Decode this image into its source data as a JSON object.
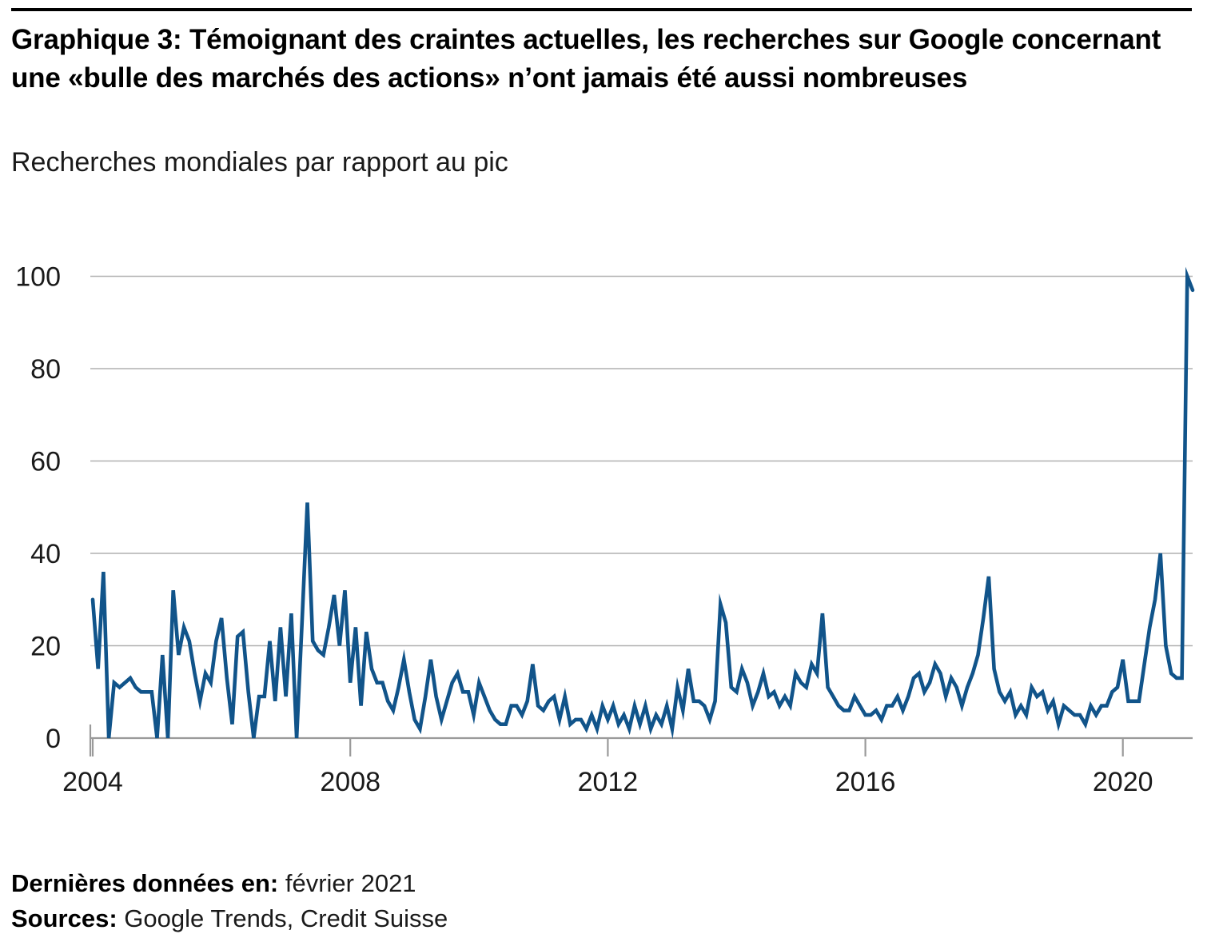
{
  "header": {
    "title": "Graphique 3: Témoignant des craintes actuelles, les recherches sur Google concernant une «bulle des marchés des actions» n’ont jamais été aussi nombreuses",
    "subtitle": "Recherches mondiales par rapport au pic"
  },
  "footer": {
    "last_data_label": "Dernières données en:",
    "last_data_value": "février 2021",
    "sources_label": "Sources:",
    "sources_value": "Google Trends, Credit Suisse"
  },
  "chart_data": {
    "type": "line",
    "title": "Graphique 3: Témoignant des craintes actuelles, les recherches sur Google concernant une «bulle des marchés des actions» n’ont jamais été aussi nombreuses",
    "subtitle": "Recherches mondiales par rapport au pic",
    "frequency": "monthly",
    "x_start": "2004-01",
    "x_end": "2021-02",
    "xticks": [
      "2004",
      "2008",
      "2012",
      "2016",
      "2020"
    ],
    "yticks": [
      0,
      20,
      40,
      60,
      80,
      100
    ],
    "ylim": [
      0,
      100
    ],
    "grid": "horizontal",
    "legend": "none",
    "colors": {
      "line": "#11548A",
      "gridline": "#b0b0b0",
      "axis": "#9a9a9a",
      "tick_text": "#1a1a1a"
    },
    "series": [
      {
        "name": "Recherches mondiales par rapport au pic",
        "values": [
          30,
          15,
          36,
          0,
          12,
          11,
          12,
          13,
          11,
          10,
          10,
          10,
          0,
          18,
          0,
          32,
          18,
          24,
          21,
          14,
          8,
          14,
          12,
          21,
          26,
          13,
          3,
          22,
          23,
          10,
          0,
          9,
          9,
          21,
          8,
          24,
          9,
          27,
          0,
          25,
          51,
          21,
          19,
          18,
          24,
          31,
          20,
          32,
          12,
          24,
          7,
          23,
          15,
          12,
          12,
          8,
          6,
          11,
          17,
          10,
          4,
          2,
          9,
          17,
          9,
          4,
          8,
          12,
          14,
          10,
          10,
          5,
          12,
          9,
          6,
          4,
          3,
          3,
          7,
          7,
          5,
          8,
          16,
          7,
          6,
          8,
          9,
          4,
          9,
          3,
          4,
          4,
          2,
          5,
          2,
          7,
          4,
          7,
          3,
          5,
          2,
          7,
          3,
          7,
          2,
          5,
          3,
          7,
          2,
          11,
          6,
          15,
          8,
          8,
          7,
          4,
          8,
          29,
          25,
          11,
          10,
          15,
          12,
          7,
          10,
          14,
          9,
          10,
          7,
          9,
          7,
          14,
          12,
          11,
          16,
          14,
          27,
          11,
          9,
          7,
          6,
          6,
          9,
          7,
          5,
          5,
          6,
          4,
          7,
          7,
          9,
          6,
          9,
          13,
          14,
          10,
          12,
          16,
          14,
          9,
          13,
          11,
          7,
          11,
          14,
          18,
          26,
          35,
          15,
          10,
          8,
          10,
          5,
          7,
          5,
          11,
          9,
          10,
          6,
          8,
          3,
          7,
          6,
          5,
          5,
          3,
          7,
          5,
          7,
          7,
          10,
          11,
          17,
          8,
          8,
          8,
          16,
          24,
          30,
          40,
          20,
          14,
          13,
          13,
          100,
          97
        ]
      }
    ]
  }
}
